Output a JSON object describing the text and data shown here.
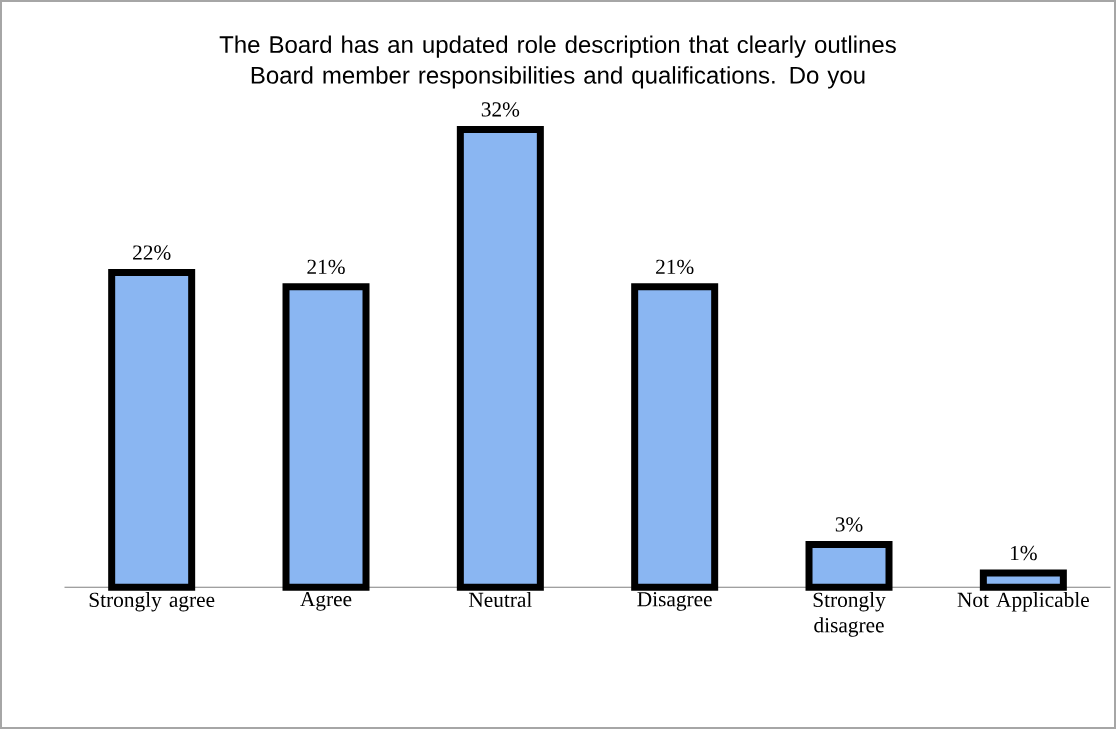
{
  "chart_data": {
    "type": "bar",
    "title": "The Board has an updated role description that clearly outlines Board member responsibilities and qualifications. Do you",
    "categories": [
      "Strongly agree",
      "Agree",
      "Neutral",
      "Disagree",
      "Strongly disagree",
      "Not Applicable"
    ],
    "values": [
      22,
      21,
      32,
      21,
      3,
      1
    ],
    "value_labels": [
      "22%",
      "21%",
      "32%",
      "21%",
      "3%",
      "1%"
    ],
    "color": "#8ab6f2"
  }
}
